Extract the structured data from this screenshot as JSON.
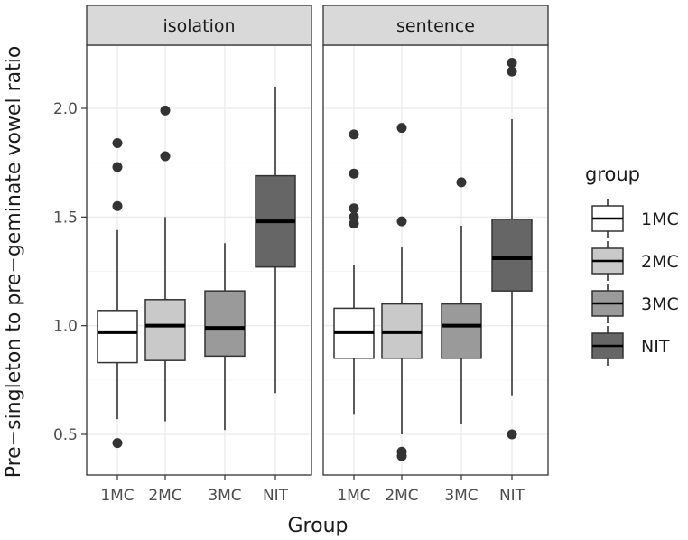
{
  "chart_data": {
    "type": "boxplot",
    "xlabel": "Group",
    "ylabel": "Pre−singleton to pre−geminate vowel ratio",
    "ylim": [
      0.33,
      2.35
    ],
    "yticks": [
      "0.5",
      "1.0",
      "1.5",
      "2.0"
    ],
    "ytick_values": [
      0.5,
      1.0,
      1.5,
      2.0
    ],
    "categories": [
      "1MC",
      "2MC",
      "3MC",
      "NIT"
    ],
    "colors": {
      "1MC": "#ffffff",
      "2MC": "#c9c9c9",
      "3MC": "#9a9a9a",
      "NIT": "#666666"
    },
    "legend": {
      "title": "group",
      "position": "right",
      "entries": [
        "1MC",
        "2MC",
        "3MC",
        "NIT"
      ]
    },
    "grid": true,
    "facets": [
      {
        "label": "isolation",
        "boxes": [
          {
            "group": "1MC",
            "whisker_low": 0.57,
            "q1": 0.83,
            "median": 0.97,
            "q3": 1.07,
            "whisker_high": 1.44,
            "outliers": [
              0.46,
              1.55,
              1.73,
              1.84
            ]
          },
          {
            "group": "2MC",
            "whisker_low": 0.56,
            "q1": 0.84,
            "median": 1.0,
            "q3": 1.12,
            "whisker_high": 1.5,
            "outliers": [
              1.78,
              1.99
            ]
          },
          {
            "group": "3MC",
            "whisker_low": 0.52,
            "q1": 0.86,
            "median": 0.99,
            "q3": 1.16,
            "whisker_high": 1.38,
            "outliers": []
          },
          {
            "group": "NIT",
            "whisker_low": 0.69,
            "q1": 1.27,
            "median": 1.48,
            "q3": 1.69,
            "whisker_high": 2.1,
            "outliers": []
          }
        ]
      },
      {
        "label": "sentence",
        "boxes": [
          {
            "group": "1MC",
            "whisker_low": 0.59,
            "q1": 0.85,
            "median": 0.97,
            "q3": 1.08,
            "whisker_high": 1.28,
            "outliers": [
              1.47,
              1.5,
              1.54,
              1.7,
              1.88
            ]
          },
          {
            "group": "2MC",
            "whisker_low": 0.5,
            "q1": 0.85,
            "median": 0.97,
            "q3": 1.1,
            "whisker_high": 1.36,
            "outliers": [
              0.4,
              0.42,
              1.48,
              1.91
            ]
          },
          {
            "group": "3MC",
            "whisker_low": 0.55,
            "q1": 0.85,
            "median": 1.0,
            "q3": 1.1,
            "whisker_high": 1.46,
            "outliers": [
              1.66
            ]
          },
          {
            "group": "NIT",
            "whisker_low": 0.68,
            "q1": 1.16,
            "median": 1.31,
            "q3": 1.49,
            "whisker_high": 1.95,
            "outliers": [
              0.5,
              2.17,
              2.21
            ]
          }
        ]
      }
    ]
  }
}
